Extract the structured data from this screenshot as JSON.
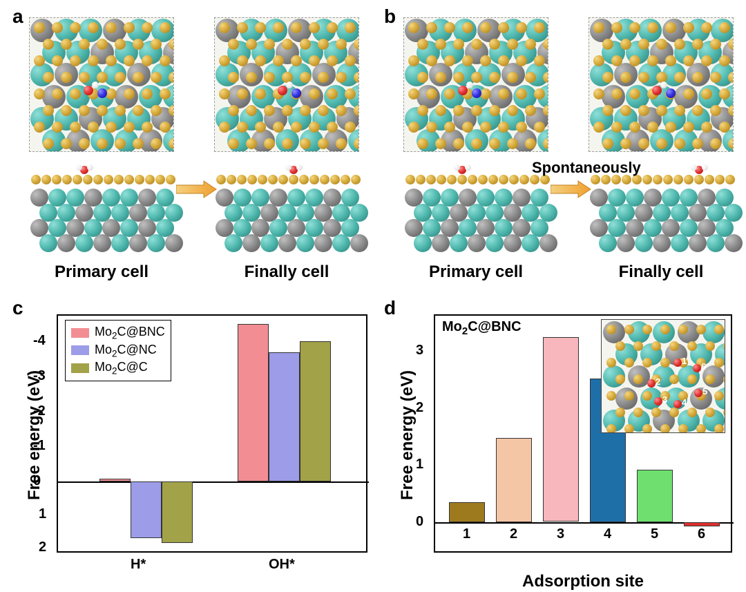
{
  "panels": {
    "a": "a",
    "b": "b",
    "c": "c",
    "d": "d"
  },
  "cell_labels": {
    "primary": "Primary cell",
    "finally": "Finally cell",
    "spontaneously": "Spontaneously"
  },
  "atom_colors": {
    "teal": "#4db6ac",
    "gray": "#888888",
    "gold": "#d4a838",
    "red": "#e03030",
    "blue": "#3030e0",
    "white": "#eeeeee"
  },
  "chart_c": {
    "type": "bar",
    "ylabel": "Free energy (eV)",
    "yticks_top": [
      "-4",
      "-3",
      "-2",
      "-1",
      "0"
    ],
    "yticks_bottom": [
      "1",
      "2"
    ],
    "categories": [
      "H*",
      "OH*"
    ],
    "legend": [
      {
        "label_html": "Mo<span class='sub'>2</span>C@BNC",
        "color": "#f38d94"
      },
      {
        "label_html": "Mo<span class='sub'>2</span>C@NC",
        "color": "#9c9ce8"
      },
      {
        "label_html": "Mo<span class='sub'>2</span>C@C",
        "color": "#a2a249"
      }
    ],
    "groups": {
      "H*": [
        {
          "value": -0.08,
          "color": "#f38d94"
        },
        {
          "value": 1.7,
          "color": "#9c9ce8"
        },
        {
          "value": 1.85,
          "color": "#a2a249"
        }
      ],
      "OH*": [
        {
          "value": -4.5,
          "color": "#f38d94"
        },
        {
          "value": -3.7,
          "color": "#9c9ce8"
        },
        {
          "value": -4.0,
          "color": "#a2a249"
        }
      ]
    },
    "ylim": [
      2,
      -4.5
    ],
    "title_fontsize": 24
  },
  "chart_d": {
    "type": "bar",
    "title": "Mo2C@BNC",
    "title_html": "Mo<span class='sub'>2</span>C@BNC",
    "ylabel": "Free energy (eV)",
    "xlabel": "Adsorption site",
    "yticks": [
      "0",
      "1",
      "2",
      "3"
    ],
    "categories": [
      "1",
      "2",
      "3",
      "4",
      "5",
      "6"
    ],
    "bars": [
      {
        "value": 0.35,
        "color": "#9e7a1e"
      },
      {
        "value": 1.48,
        "color": "#f5c6a5"
      },
      {
        "value": 3.25,
        "color": "#f7b7bd"
      },
      {
        "value": 2.52,
        "color": "#1e6fa8"
      },
      {
        "value": 0.92,
        "color": "#6fe06f"
      },
      {
        "value": -0.08,
        "color": "#e03030"
      }
    ],
    "ylim": [
      -0.1,
      3.5
    ],
    "inset_sites": [
      "1",
      "2",
      "3",
      "4",
      "5",
      "6"
    ]
  }
}
